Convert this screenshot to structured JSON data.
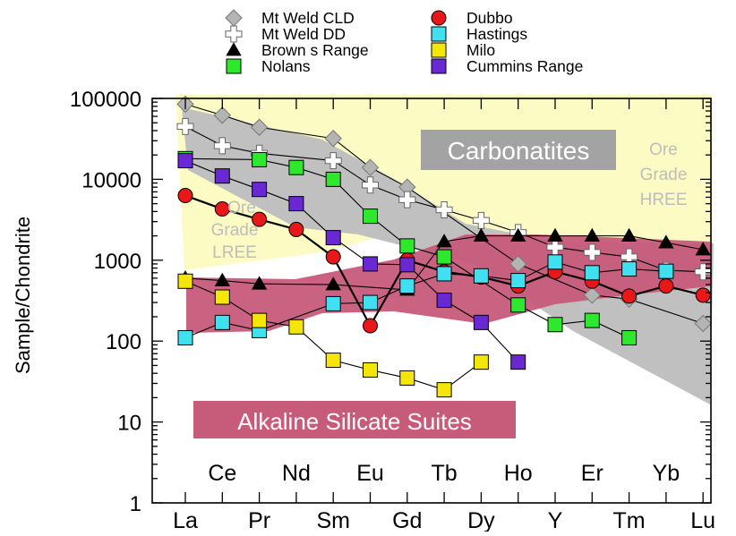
{
  "chart_data": {
    "type": "line",
    "yscale": "log",
    "ylim": [
      1,
      100000
    ],
    "ylabel": "Sample/Chondrite",
    "x": [
      "La",
      "Ce",
      "Pr",
      "Nd",
      "Sm",
      "Eu",
      "Gd",
      "Tb",
      "Dy",
      "Ho",
      "Y",
      "Er",
      "Tm",
      "Yb",
      "Lu"
    ],
    "x_tick_labels_bottom": [
      "La",
      "Pr",
      "Sm",
      "Gd",
      "Dy",
      "Y",
      "Tm",
      "Lu"
    ],
    "x_tick_labels_top": [
      "Ce",
      "Nd",
      "Eu",
      "Tb",
      "Ho",
      "Er",
      "Yb"
    ],
    "y_tick_labels": [
      "1",
      "10",
      "100",
      "1000",
      "10000",
      "100000"
    ],
    "legend_position": "top",
    "grid": false,
    "series": [
      {
        "name": "Mt Weld CLD",
        "marker": "diamond",
        "color": "#b4b4b4",
        "values": [
          85000,
          62000,
          44000,
          null,
          32000,
          14000,
          8000,
          null,
          null,
          900,
          null,
          370,
          330,
          null,
          165
        ]
      },
      {
        "name": "Mt Weld DD",
        "marker": "cross",
        "color": "#ffffff",
        "values": [
          45000,
          26000,
          21000,
          null,
          17000,
          8500,
          5600,
          4200,
          3100,
          2200,
          1450,
          1250,
          1100,
          750,
          720
        ]
      },
      {
        "name": "Brown s Range",
        "marker": "triangle",
        "color": "#000000",
        "values": [
          600,
          560,
          510,
          null,
          500,
          null,
          430,
          1700,
          2000,
          2000,
          2000,
          2000,
          2000,
          1650,
          1350
        ]
      },
      {
        "name": "Nolans",
        "marker": "square",
        "color": "#2ee82e",
        "values": [
          18000,
          null,
          17500,
          14000,
          10000,
          3500,
          1500,
          1100,
          null,
          280,
          160,
          180,
          110,
          null,
          null
        ]
      },
      {
        "name": "Dubbo",
        "marker": "circle",
        "color": "#e81818",
        "values": [
          6300,
          4300,
          3200,
          2400,
          1100,
          155,
          1000,
          720,
          620,
          480,
          720,
          550,
          360,
          480,
          370
        ]
      },
      {
        "name": "Hastings",
        "marker": "square",
        "color": "#40e0f0",
        "values": [
          110,
          170,
          135,
          null,
          290,
          300,
          480,
          680,
          640,
          560,
          950,
          700,
          780,
          730,
          null
        ]
      },
      {
        "name": "Milo",
        "marker": "square",
        "color": "#f5e60a",
        "values": [
          550,
          350,
          180,
          150,
          58,
          44,
          35,
          25,
          55,
          null,
          null,
          null,
          null,
          null,
          null
        ]
      },
      {
        "name": "Cummins Range",
        "marker": "square",
        "color": "#6a28d2",
        "values": [
          17000,
          11000,
          7500,
          5000,
          1900,
          900,
          880,
          320,
          170,
          55,
          null,
          null,
          null,
          null,
          null
        ]
      }
    ],
    "region_labels": {
      "carbonatites": "Carbonatites",
      "alkaline": "Alkaline Silicate Suites",
      "ore_lree": [
        "Ore",
        "Grade",
        "LREE"
      ],
      "ore_hree": [
        "Ore",
        "Grade",
        "HREE"
      ]
    },
    "colors": {
      "ore_grade_field": "#fdfbc4",
      "carbonatite_field": "#c0c0c0",
      "alkaline_field": "#c75b7a"
    }
  }
}
